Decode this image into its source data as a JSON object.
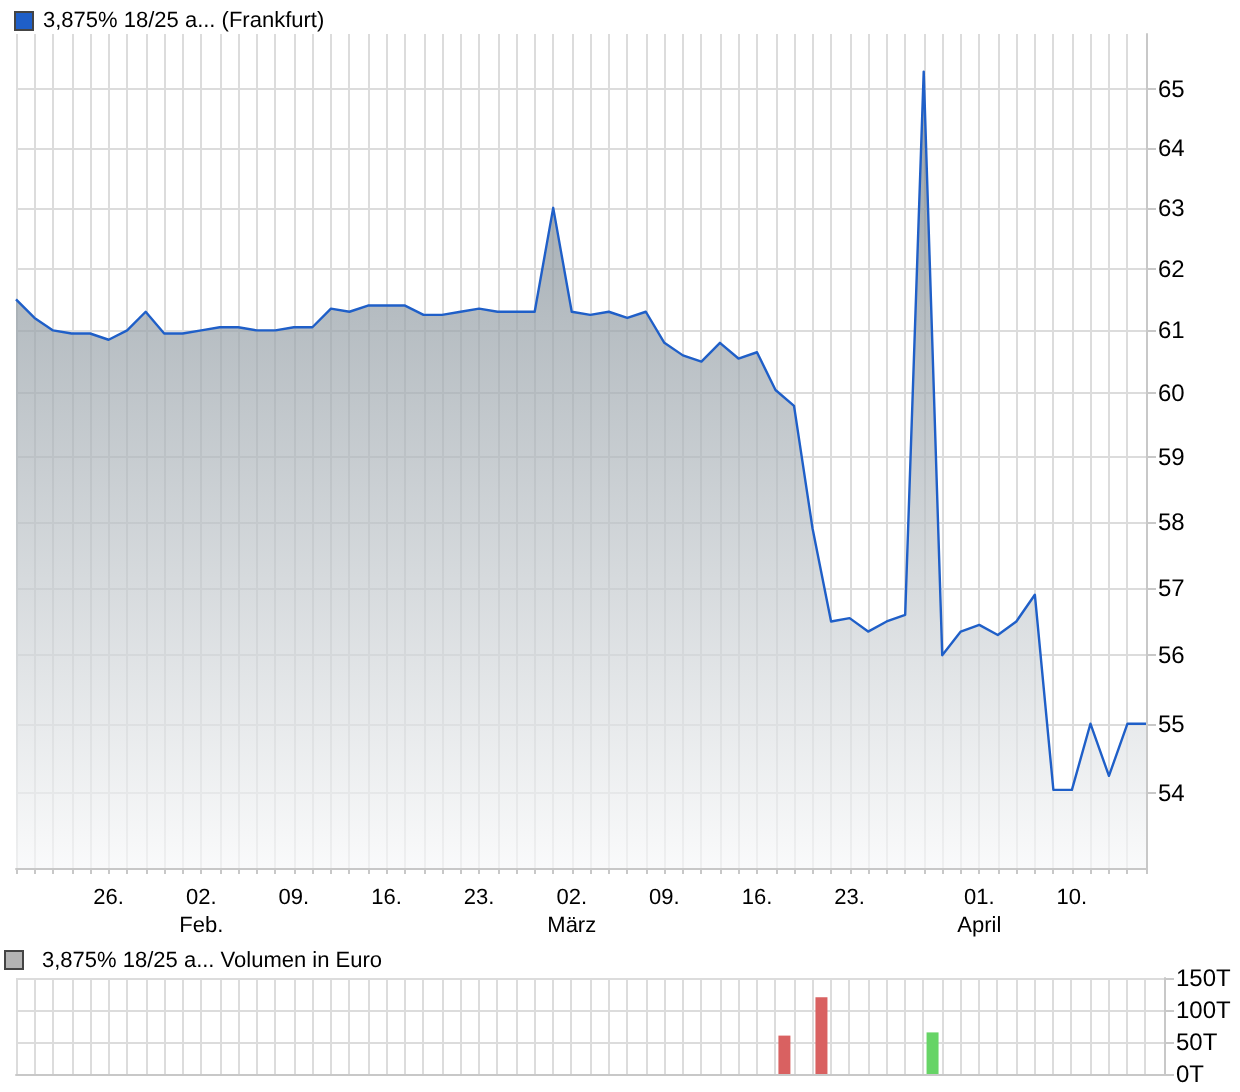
{
  "chart_data": [
    {
      "type": "area",
      "log": "y",
      "grid": true,
      "legend": "top left",
      "categories": [
        null,
        null,
        null,
        null,
        null,
        "26.",
        null,
        null,
        null,
        null,
        "02.\nFeb.",
        null,
        null,
        null,
        null,
        "09.",
        null,
        null,
        null,
        null,
        "16.",
        null,
        null,
        null,
        null,
        "23.",
        null,
        null,
        null,
        null,
        "02.\nMärz",
        null,
        null,
        null,
        null,
        "09.",
        null,
        null,
        null,
        null,
        "16.",
        null,
        null,
        null,
        null,
        "23.",
        null,
        null,
        null,
        null,
        null,
        null,
        "01.\nApril",
        null,
        null,
        null,
        null,
        "10.",
        null,
        null,
        null,
        null
      ],
      "series": [
        {
          "name": "3,875% 18/25 a... (Frankfurt)",
          "color": "#1f5fc8",
          "values": [
            61.5,
            61.2,
            61.0,
            60.95,
            60.95,
            60.85,
            61.0,
            61.3,
            60.95,
            60.95,
            61.0,
            61.05,
            61.05,
            61.0,
            61.0,
            61.05,
            61.05,
            61.35,
            61.3,
            61.4,
            61.4,
            61.4,
            61.25,
            61.25,
            61.3,
            61.35,
            61.3,
            61.3,
            61.3,
            63.0,
            61.3,
            61.25,
            61.3,
            61.2,
            61.3,
            60.8,
            60.6,
            60.5,
            60.8,
            60.55,
            60.65,
            60.05,
            59.8,
            57.9,
            56.5,
            56.55,
            56.35,
            56.5,
            56.6,
            65.3,
            56.0,
            56.35,
            56.45,
            56.3,
            56.5,
            56.9,
            54.05,
            54.05,
            55.0,
            54.25,
            55.0,
            55.0
          ]
        }
      ],
      "ylim": [
        52.95,
        65.95
      ],
      "yticks": [
        54,
        55,
        56,
        57,
        58,
        59,
        60,
        61,
        62,
        63,
        64,
        65
      ]
    },
    {
      "type": "bar",
      "grid": true,
      "legend": "top left",
      "tick_labels": "y",
      "categories": [
        null,
        null,
        null,
        null,
        null,
        null,
        null,
        null,
        null,
        null,
        null,
        null,
        null,
        null,
        null,
        null,
        null,
        null,
        null,
        null,
        null,
        null,
        null,
        null,
        null,
        null,
        null,
        null,
        null,
        null,
        null,
        null,
        null,
        null,
        null,
        null,
        null,
        null,
        null,
        null,
        null,
        null,
        null,
        null,
        null,
        null,
        null,
        null,
        null,
        null,
        null,
        null,
        null,
        null,
        null,
        null,
        null,
        null,
        null,
        null,
        null,
        null
      ],
      "series": [
        {
          "name": "3,875% 18/25 a... Volumen in Euro",
          "colors": [
            null,
            null,
            null,
            null,
            null,
            null,
            null,
            null,
            null,
            null,
            null,
            null,
            null,
            null,
            null,
            null,
            null,
            null,
            null,
            null,
            null,
            null,
            null,
            null,
            null,
            null,
            null,
            null,
            null,
            null,
            null,
            null,
            null,
            null,
            null,
            null,
            null,
            null,
            null,
            null,
            null,
            "#d96161",
            null,
            "#d96161",
            null,
            null,
            null,
            null,
            null,
            "#66d466",
            null,
            null,
            null,
            null,
            null,
            null,
            null,
            null,
            null,
            null,
            null,
            null
          ],
          "values": [
            null,
            null,
            null,
            null,
            null,
            null,
            null,
            null,
            null,
            null,
            null,
            null,
            null,
            null,
            null,
            null,
            null,
            null,
            null,
            null,
            null,
            null,
            null,
            null,
            null,
            null,
            null,
            null,
            null,
            null,
            null,
            null,
            null,
            null,
            null,
            null,
            null,
            null,
            null,
            null,
            null,
            60,
            null,
            120,
            null,
            null,
            null,
            null,
            null,
            65,
            null,
            null,
            null,
            null,
            null,
            null,
            null,
            null,
            null,
            null,
            null,
            null
          ]
        }
      ],
      "ylim": [
        0,
        150
      ],
      "yticks": [
        {
          "value": 0,
          "label": "0T"
        },
        {
          "value": 50,
          "label": "50T"
        },
        {
          "value": 100,
          "label": "100T"
        },
        {
          "value": 150,
          "label": "150T"
        }
      ]
    }
  ]
}
